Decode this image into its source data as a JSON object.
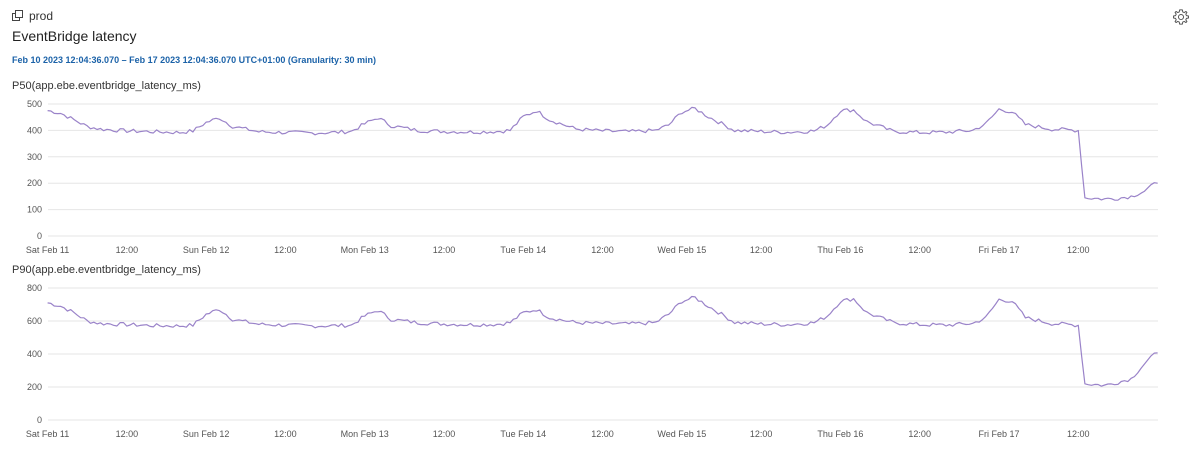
{
  "header": {
    "env_label": "prod",
    "env_icon": "copy-icon",
    "settings_icon": "gear-icon",
    "title": "EventBridge latency",
    "range": "Feb 10 2023 12:04:36.070 – Feb 17 2023 12:04:36.070 UTC+01:00 (Granularity: 30 min)"
  },
  "colors": {
    "line": "#9a83c9",
    "grid": "#e6e6e6",
    "range_text": "#1b62a8"
  },
  "chart_data": [
    {
      "type": "line",
      "title": "P50(app.ebe.eventbridge_latency_ms)",
      "ylim": [
        0,
        500
      ],
      "yticks": [
        0,
        100,
        200,
        300,
        400,
        500
      ],
      "xlim": [
        "Feb 10 12:04",
        "Feb 17 12:04"
      ],
      "xticks": [
        "Sat Feb 11",
        "12:00",
        "Sun Feb 12",
        "12:00",
        "Mon Feb 13",
        "12:00",
        "Tue Feb 14",
        "12:00",
        "Wed Feb 15",
        "12:00",
        "Thu Feb 16",
        "12:00",
        "Fri Feb 17",
        "12:00"
      ],
      "grid": true,
      "series": [
        {
          "x": [
            "Feb 10 12:00",
            "Feb 10 14:00",
            "Feb 10 16:00",
            "Feb 10 18:00",
            "Feb 10 20:00",
            "Feb 11 00:00",
            "Feb 11 04:00",
            "Feb 11 08:00",
            "Feb 11 10:00",
            "Feb 11 12:00",
            "Feb 11 14:00",
            "Feb 11 16:00",
            "Feb 11 20:00",
            "Feb 12 00:00",
            "Feb 12 04:00",
            "Feb 12 08:00",
            "Feb 12 10:00",
            "Feb 12 12:00",
            "Feb 12 14:00",
            "Feb 12 16:00",
            "Feb 12 20:00",
            "Feb 13 00:00",
            "Feb 13 04:00",
            "Feb 13 08:00",
            "Feb 13 10:00",
            "Feb 13 12:00",
            "Feb 13 14:00",
            "Feb 13 16:00",
            "Feb 13 20:00",
            "Feb 14 00:00",
            "Feb 14 04:00",
            "Feb 14 08:00",
            "Feb 14 10:00",
            "Feb 14 12:00",
            "Feb 14 14:00",
            "Feb 14 16:00",
            "Feb 14 20:00",
            "Feb 15 00:00",
            "Feb 15 04:00",
            "Feb 15 08:00",
            "Feb 15 10:00",
            "Feb 15 12:00",
            "Feb 15 14:00",
            "Feb 15 16:00",
            "Feb 15 20:00",
            "Feb 16 00:00",
            "Feb 16 04:00",
            "Feb 16 08:00",
            "Feb 16 10:00",
            "Feb 16 12:00",
            "Feb 16 14:00",
            "Feb 16 16:00",
            "Feb 16 20:00",
            "Feb 17 00:00",
            "Feb 17 01:00",
            "Feb 17 04:00",
            "Feb 17 06:00",
            "Feb 17 08:00",
            "Feb 17 10:00",
            "Feb 17 12:00"
          ],
          "values": [
            475,
            465,
            440,
            415,
            405,
            398,
            395,
            392,
            398,
            430,
            448,
            415,
            395,
            392,
            390,
            393,
            397,
            425,
            448,
            418,
            400,
            396,
            394,
            396,
            400,
            452,
            475,
            440,
            405,
            398,
            395,
            400,
            420,
            470,
            483,
            452,
            400,
            396,
            393,
            398,
            420,
            475,
            478,
            433,
            396,
            392,
            393,
            400,
            425,
            480,
            470,
            422,
            405,
            400,
            145,
            140,
            143,
            150,
            170,
            205
          ]
        }
      ]
    },
    {
      "type": "line",
      "title": "P90(app.ebe.eventbridge_latency_ms)",
      "ylim": [
        0,
        800
      ],
      "yticks": [
        0,
        200,
        400,
        600,
        800
      ],
      "xlim": [
        "Feb 10 12:04",
        "Feb 17 12:04"
      ],
      "xticks": [
        "Sat Feb 11",
        "12:00",
        "Sun Feb 12",
        "12:00",
        "Mon Feb 13",
        "12:00",
        "Tue Feb 14",
        "12:00",
        "Wed Feb 15",
        "12:00",
        "Thu Feb 16",
        "12:00",
        "Fri Feb 17",
        "12:00"
      ],
      "grid": true,
      "series": [
        {
          "x": [
            "Feb 10 12:00",
            "Feb 10 14:00",
            "Feb 10 16:00",
            "Feb 10 18:00",
            "Feb 10 20:00",
            "Feb 11 00:00",
            "Feb 11 04:00",
            "Feb 11 08:00",
            "Feb 11 10:00",
            "Feb 11 12:00",
            "Feb 11 14:00",
            "Feb 11 16:00",
            "Feb 11 20:00",
            "Feb 12 00:00",
            "Feb 12 04:00",
            "Feb 12 08:00",
            "Feb 12 10:00",
            "Feb 12 12:00",
            "Feb 12 14:00",
            "Feb 12 16:00",
            "Feb 12 20:00",
            "Feb 13 00:00",
            "Feb 13 04:00",
            "Feb 13 08:00",
            "Feb 13 10:00",
            "Feb 13 12:00",
            "Feb 13 14:00",
            "Feb 13 16:00",
            "Feb 13 20:00",
            "Feb 14 00:00",
            "Feb 14 04:00",
            "Feb 14 08:00",
            "Feb 14 10:00",
            "Feb 14 12:00",
            "Feb 14 14:00",
            "Feb 14 16:00",
            "Feb 14 20:00",
            "Feb 15 00:00",
            "Feb 15 04:00",
            "Feb 15 08:00",
            "Feb 15 10:00",
            "Feb 15 12:00",
            "Feb 15 14:00",
            "Feb 15 16:00",
            "Feb 15 20:00",
            "Feb 16 00:00",
            "Feb 16 04:00",
            "Feb 16 08:00",
            "Feb 16 10:00",
            "Feb 16 12:00",
            "Feb 16 14:00",
            "Feb 16 16:00",
            "Feb 16 20:00",
            "Feb 17 00:00",
            "Feb 17 01:00",
            "Feb 17 04:00",
            "Feb 17 06:00",
            "Feb 17 08:00",
            "Feb 17 10:00",
            "Feb 17 12:00"
          ],
          "values": [
            710,
            690,
            650,
            600,
            585,
            578,
            572,
            570,
            575,
            640,
            672,
            610,
            580,
            575,
            570,
            572,
            575,
            630,
            665,
            610,
            590,
            582,
            578,
            580,
            590,
            650,
            670,
            620,
            590,
            585,
            582,
            590,
            640,
            720,
            742,
            690,
            592,
            582,
            578,
            590,
            630,
            720,
            735,
            650,
            590,
            578,
            575,
            585,
            620,
            730,
            720,
            620,
            585,
            575,
            220,
            210,
            228,
            250,
            340,
            415
          ]
        }
      ]
    }
  ]
}
